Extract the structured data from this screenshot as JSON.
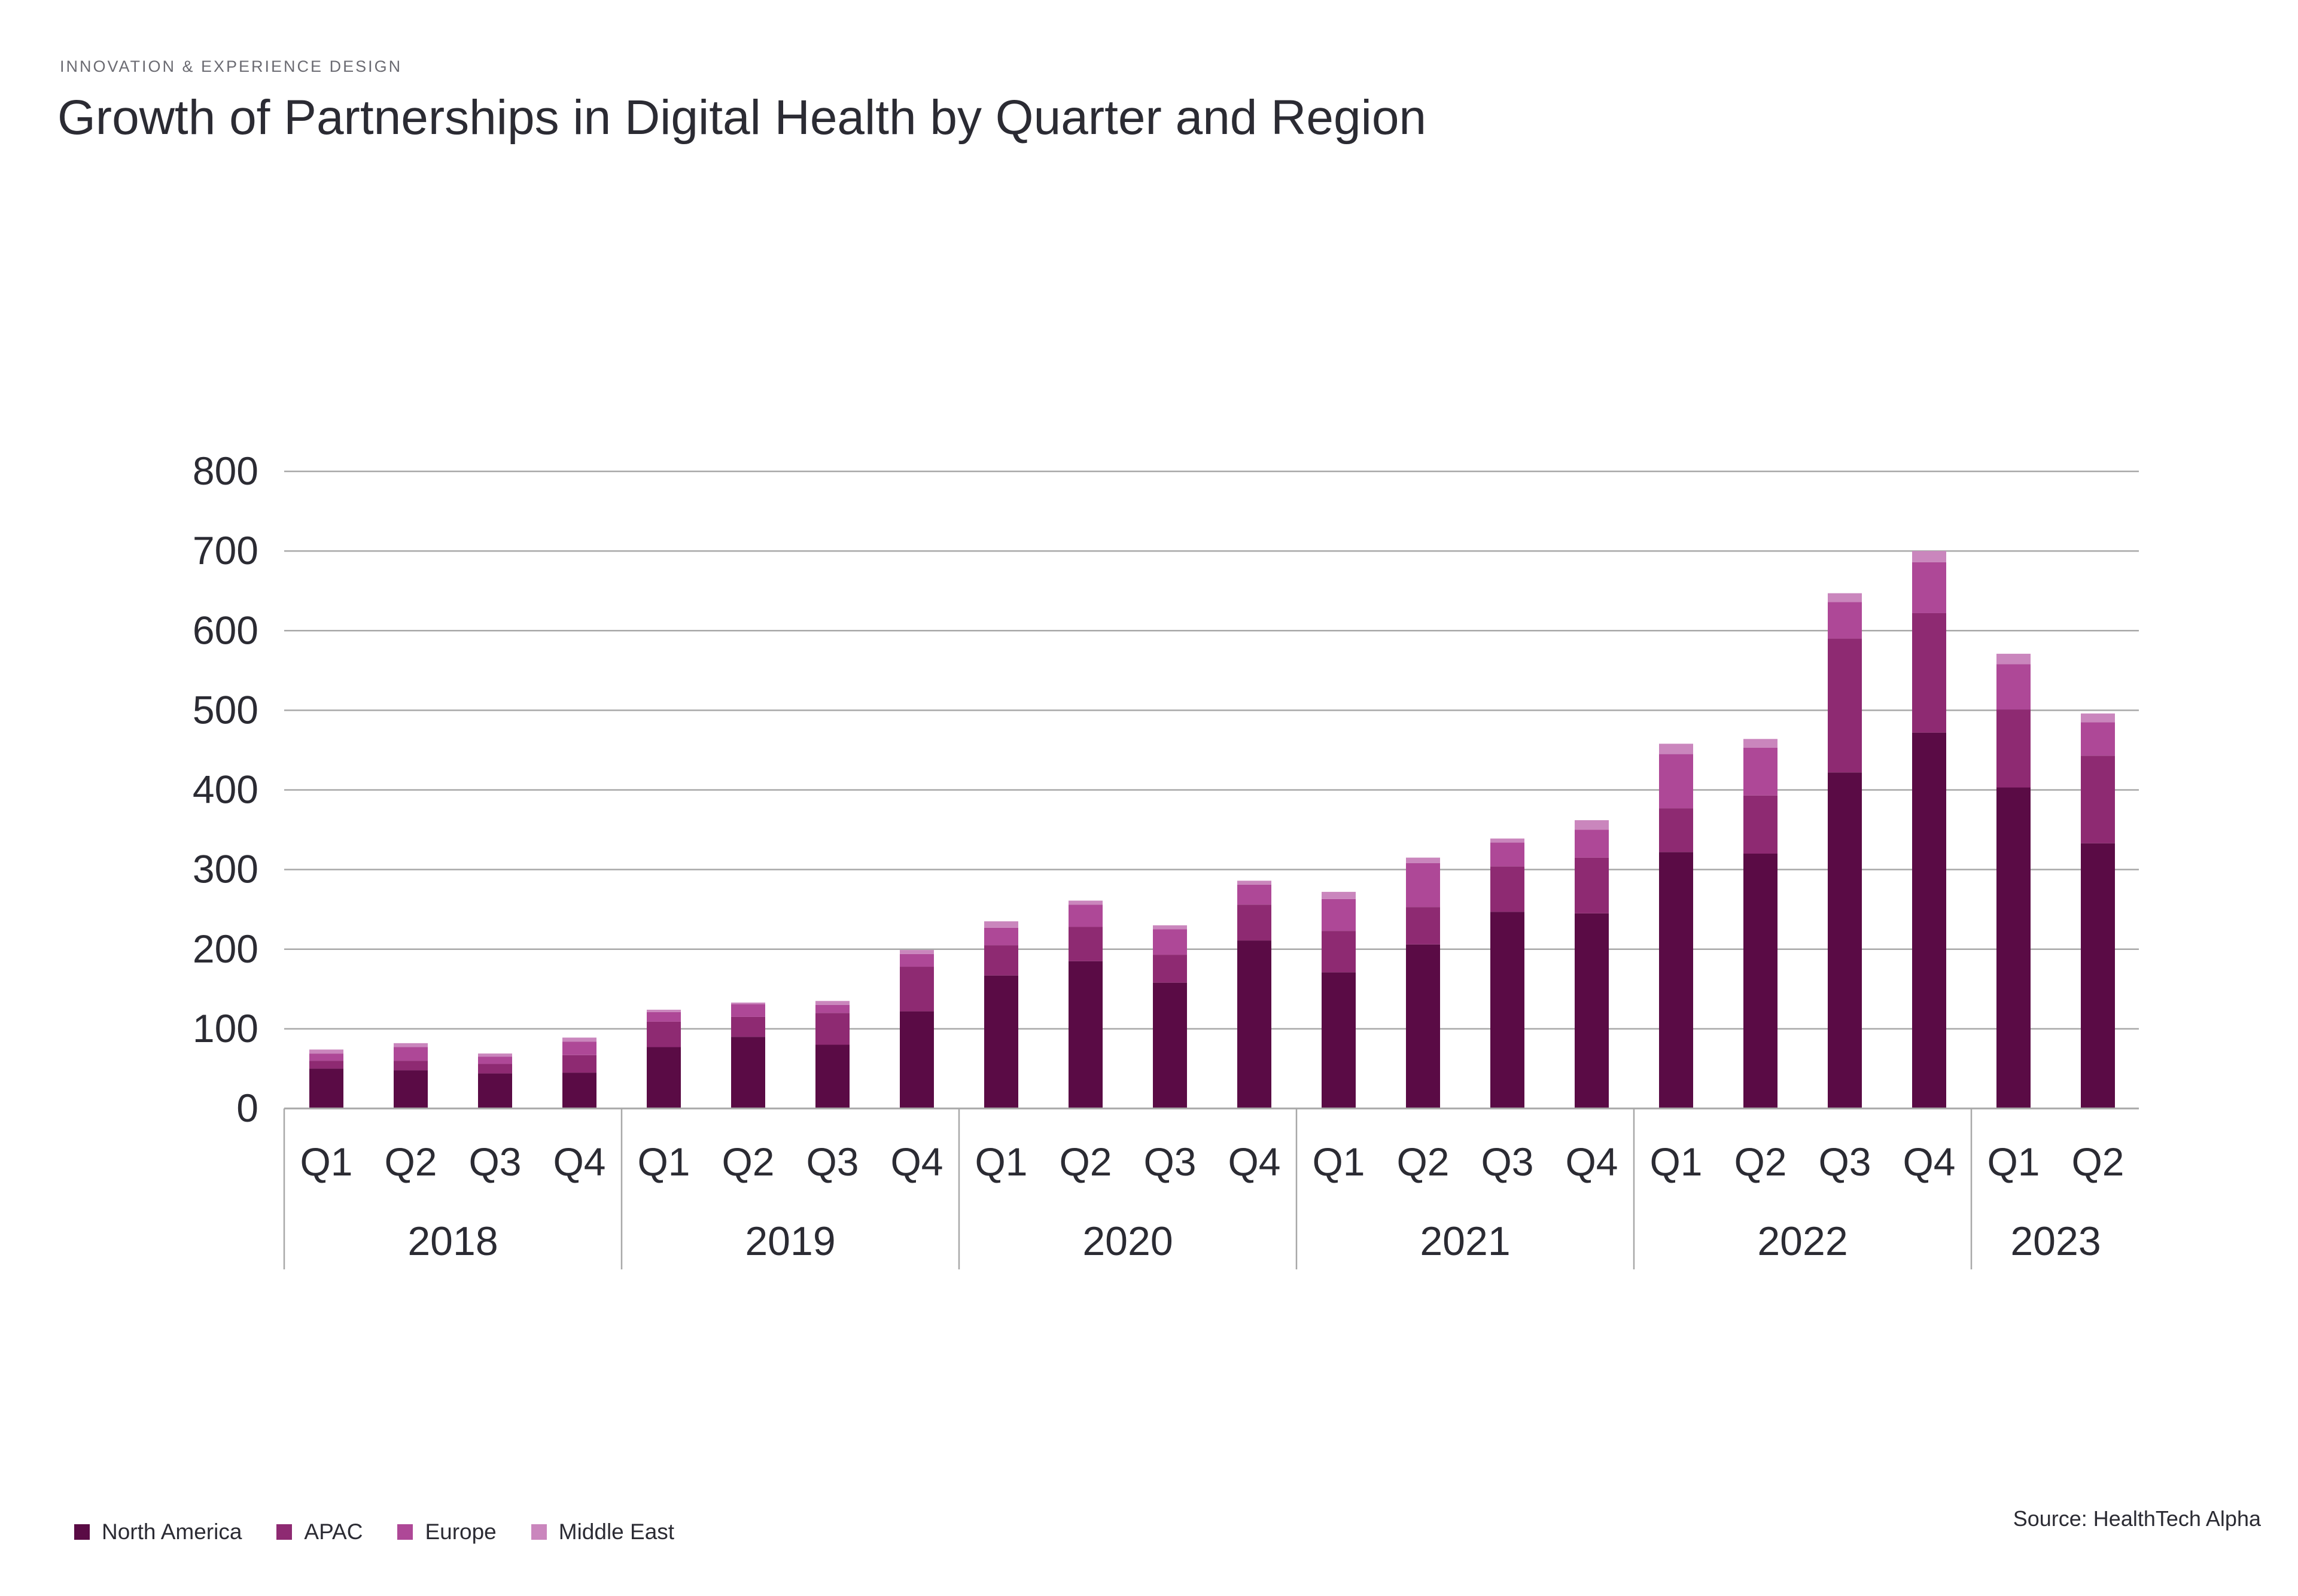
{
  "header": {
    "eyebrow": "INNOVATION & EXPERIENCE DESIGN",
    "title": "Growth of Partnerships in Digital Health by Quarter and Region"
  },
  "source": "Source: HealthTech Alpha",
  "colors": {
    "North America": "#5a0b45",
    "APAC": "#8e2a72",
    "Europe": "#ae4897",
    "Middle East": "#ca86bd",
    "gridline": "#a8a8a8",
    "text": "#2b2b33"
  },
  "chart_data": {
    "type": "bar",
    "stacked": true,
    "title": "Growth of Partnerships in Digital Health by Quarter and Region",
    "xlabel": "",
    "ylabel": "",
    "ylim": [
      0,
      800
    ],
    "yticks": [
      0,
      100,
      200,
      300,
      400,
      500,
      600,
      700,
      800
    ],
    "grid": true,
    "legend_position": "bottom-left",
    "groups": [
      {
        "label": "2018",
        "count": 4
      },
      {
        "label": "2019",
        "count": 4
      },
      {
        "label": "2020",
        "count": 4
      },
      {
        "label": "2021",
        "count": 4
      },
      {
        "label": "2022",
        "count": 4
      },
      {
        "label": "2023",
        "count": 2
      }
    ],
    "categories": [
      "Q1",
      "Q2",
      "Q3",
      "Q4",
      "Q1",
      "Q2",
      "Q3",
      "Q4",
      "Q1",
      "Q2",
      "Q3",
      "Q4",
      "Q1",
      "Q2",
      "Q3",
      "Q4",
      "Q1",
      "Q2",
      "Q3",
      "Q4",
      "Q1",
      "Q2"
    ],
    "series": [
      {
        "name": "North America",
        "values": [
          50,
          48,
          44,
          45,
          77,
          90,
          80,
          122,
          167,
          185,
          158,
          211,
          171,
          206,
          247,
          245,
          322,
          320,
          422,
          472,
          403,
          333
        ]
      },
      {
        "name": "APAC",
        "values": [
          10,
          12,
          12,
          22,
          32,
          25,
          40,
          56,
          38,
          43,
          35,
          45,
          52,
          47,
          57,
          70,
          55,
          73,
          168,
          150,
          98,
          110
        ]
      },
      {
        "name": "Europe",
        "values": [
          9,
          17,
          9,
          17,
          12,
          16,
          10,
          16,
          22,
          28,
          32,
          25,
          40,
          55,
          30,
          35,
          68,
          60,
          46,
          64,
          57,
          42
        ]
      },
      {
        "name": "Middle East",
        "values": [
          5,
          5,
          4,
          5,
          3,
          2,
          5,
          5,
          8,
          5,
          5,
          5,
          9,
          7,
          5,
          12,
          13,
          11,
          11,
          14,
          13,
          11
        ]
      }
    ]
  }
}
